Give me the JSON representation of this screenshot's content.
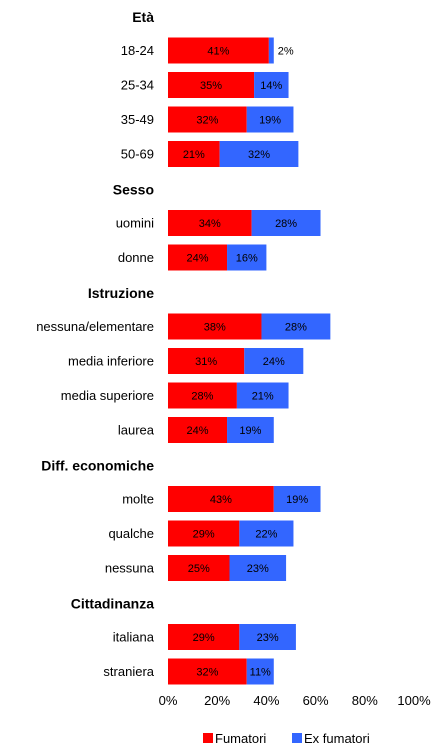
{
  "chart_data": {
    "type": "bar",
    "orientation": "horizontal",
    "stacked": true,
    "xlim": [
      0,
      100
    ],
    "x_ticks": [
      "0%",
      "20%",
      "40%",
      "60%",
      "80%",
      "100%"
    ],
    "grid": false,
    "legend_position": "bottom-right",
    "groups": [
      {
        "name": "Età",
        "categories": [
          "18-24",
          "25-34",
          "35-49",
          "50-69"
        ]
      },
      {
        "name": "Sesso",
        "categories": [
          "uomini",
          "donne"
        ]
      },
      {
        "name": "Istruzione",
        "categories": [
          "nessuna/elementare",
          "media inferiore",
          "media superiore",
          "laurea"
        ]
      },
      {
        "name": "Diff. economiche",
        "categories": [
          "molte",
          "qualche",
          "nessuna"
        ]
      },
      {
        "name": "Cittadinanza",
        "categories": [
          "italiana",
          "straniera"
        ]
      }
    ],
    "series": [
      {
        "name": "Fumatori",
        "color": "#ff0000",
        "values": [
          41,
          35,
          32,
          21,
          34,
          24,
          38,
          31,
          28,
          24,
          43,
          29,
          25,
          29,
          32
        ],
        "labels": [
          "41%",
          "35%",
          "32%",
          "21%",
          "34%",
          "24%",
          "38%",
          "31%",
          "28%",
          "24%",
          "43%",
          "29%",
          "25%",
          "29%",
          "32%"
        ]
      },
      {
        "name": "Ex fumatori",
        "color": "#3366ff",
        "values": [
          2,
          14,
          19,
          32,
          28,
          16,
          28,
          24,
          21,
          19,
          19,
          22,
          23,
          23,
          11
        ],
        "labels": [
          "2%",
          "14%",
          "19%",
          "32%",
          "28%",
          "16%",
          "28%",
          "24%",
          "21%",
          "19%",
          "19%",
          "22%",
          "23%",
          "23%",
          "11%"
        ]
      }
    ]
  }
}
